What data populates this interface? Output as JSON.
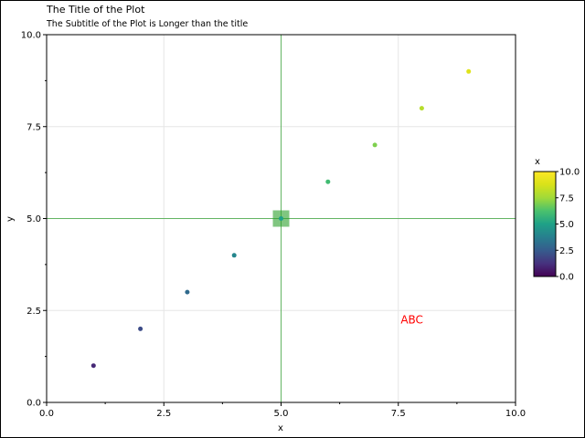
{
  "chart_data": {
    "type": "scatter",
    "title": "The Title of the Plot",
    "subtitle": "The Subtitle of the Plot is Longer than the title",
    "xlabel": "x",
    "ylabel": "y",
    "xlim": [
      0,
      10
    ],
    "ylim": [
      0,
      10
    ],
    "xticks": [
      0,
      2.5,
      5,
      7.5,
      10
    ],
    "yticks": [
      0,
      2.5,
      5,
      7.5,
      10
    ],
    "xtick_labels": [
      "0.0",
      "2.5",
      "5.0",
      "7.5",
      "10.0"
    ],
    "ytick_labels": [
      "0.0",
      "2.5",
      "5.0",
      "7.5",
      "10.0"
    ],
    "grid": true,
    "colormap": "viridis",
    "color_by": "x",
    "points": [
      {
        "x": 1,
        "y": 1
      },
      {
        "x": 2,
        "y": 2
      },
      {
        "x": 3,
        "y": 3
      },
      {
        "x": 4,
        "y": 4
      },
      {
        "x": 5,
        "y": 5
      },
      {
        "x": 6,
        "y": 6
      },
      {
        "x": 7,
        "y": 7
      },
      {
        "x": 8,
        "y": 8
      },
      {
        "x": 9,
        "y": 9
      }
    ],
    "reference_lines": {
      "vertical_x": 5,
      "horizontal_y": 5,
      "color": "#2ca02c"
    },
    "highlight_marker": {
      "x": 5,
      "y": 5,
      "shape": "square",
      "color": "#2ca02c"
    },
    "annotation": {
      "text": "ABC",
      "x": 7.55,
      "y": 2.15,
      "color": "#ff0000"
    },
    "colorbar": {
      "label": "x",
      "range": [
        0,
        10
      ],
      "ticks": [
        0,
        2.5,
        5,
        7.5,
        10
      ],
      "tick_labels": [
        "0.0",
        "2.5",
        "5.0",
        "7.5",
        "10.0"
      ]
    }
  }
}
